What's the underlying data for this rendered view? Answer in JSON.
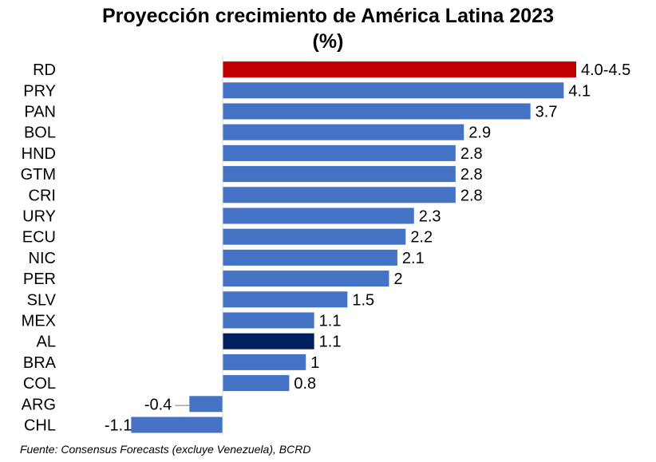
{
  "chart_data": {
    "type": "bar",
    "orientation": "horizontal",
    "title": "Proyección crecimiento de América Latina 2023",
    "subtitle": "(%)",
    "categories": [
      "RD",
      "PRY",
      "PAN",
      "BOL",
      "HND",
      "GTM",
      "CRI",
      "URY",
      "ECU",
      "NIC",
      "PER",
      "SLV",
      "MEX",
      "AL",
      "BRA",
      "COL",
      "ARG",
      "CHL"
    ],
    "values": [
      4.25,
      4.1,
      3.7,
      2.9,
      2.8,
      2.8,
      2.8,
      2.3,
      2.2,
      2.1,
      2.0,
      1.5,
      1.1,
      1.1,
      1.0,
      0.8,
      -0.4,
      -1.1
    ],
    "data_labels": [
      "4.0-4.5",
      "4.1",
      "3.7",
      "2.9",
      "2.8",
      "2.8",
      "2.8",
      "2.3",
      "2.2",
      "2.1",
      "2",
      "1.5",
      "1.1",
      "1.1",
      "1",
      "0.8",
      "-0.4",
      "-1.1"
    ],
    "highlight": {
      "RD": "#C00000",
      "AL": "#002060"
    },
    "default_color": "#4472C4",
    "xlim": [
      -1.1,
      4.25
    ],
    "grid": false,
    "legend": "none"
  },
  "source": "Fuente: Consensus Forecasts (excluye Venezuela), BCRD"
}
